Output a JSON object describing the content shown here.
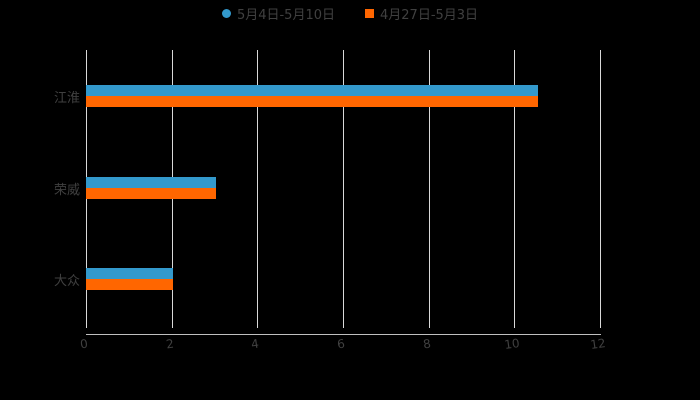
{
  "chart_data": {
    "type": "bar",
    "orientation": "horizontal",
    "title": "",
    "xlabel": "",
    "ylabel": "",
    "categories": [
      "江淮",
      "荣威",
      "大众"
    ],
    "series": [
      {
        "name": "5月4日-5月10日",
        "color": "#3399CC",
        "marker": "circle",
        "values": [
          10.55,
          3.03,
          2.02
        ]
      },
      {
        "name": "4月27日-5月3日",
        "color": "#FF6600",
        "marker": "square",
        "values": [
          10.55,
          3.03,
          2.02
        ]
      }
    ],
    "xlim": [
      0,
      12
    ],
    "xticks": [
      "0",
      "2",
      "4",
      "6",
      "8",
      "10",
      "12"
    ],
    "grid": true,
    "legend_position": "top"
  },
  "legend": {
    "items": [
      {
        "label": "5月4日-5月10日",
        "color": "#3399CC"
      },
      {
        "label": "4月27日-5月3日",
        "color": "#FF6600"
      }
    ]
  }
}
